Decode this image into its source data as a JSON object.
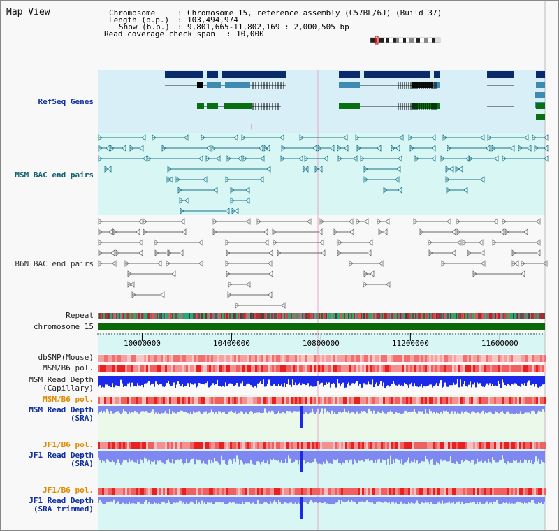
{
  "title": "Map View",
  "header": {
    "line1_key": "Chromosome",
    "line1_val": "Chromosome 15, reference assembly (C57BL/6J) (Build 37)",
    "line2_key": "Length (b.p.)",
    "line2_val": "103,494,974",
    "line3_key": "Show (b.p.)",
    "line3_val": "9,801,665-11,802,169 : 2,000,505 bp",
    "line4_key": "Read coverage check span",
    "line4_val": "10,000"
  },
  "tracks": {
    "refseq": "RefSeq Genes",
    "msm_bac": "MSM BAC end pairs",
    "b6n_bac": "B6N BAC end pairs",
    "repeat": "Repeat",
    "chromosome": "chromosome 15",
    "dbsnp": "dbSNP(Mouse)",
    "msm_pol": "MSM/B6 pol.",
    "msm_depth_cap_1": "MSM Read Depth",
    "msm_depth_cap_2": "(Capillary)",
    "msm_pol2": "MSM/B6 pol.",
    "msm_depth_sra_1": "MSM Read Depth",
    "msm_depth_sra_2": "(SRA)",
    "jf1_pol": "JF1/B6 pol.",
    "jf1_depth_sra_1": "JF1 Read Depth",
    "jf1_depth_sra_2": "(SRA)",
    "jf1_pol2": "JF1/B6 pol.",
    "jf1_depth_trim_1": "JF1 Read Depth",
    "jf1_depth_trim_2": "(SRA trimmed)"
  },
  "axis": {
    "ticks": [
      "10000000",
      "10400000",
      "10800000",
      "11200000",
      "11600000"
    ],
    "tick_values": [
      10000000,
      10400000,
      10800000,
      11200000,
      11600000
    ],
    "range": [
      9801665,
      11802169
    ]
  },
  "colors": {
    "gene_dark": "#0a2a6a",
    "gene_mid": "#3e8ab0",
    "gene_green": "#087010",
    "bac_msm": "#1a7088",
    "bac_b6n": "#666666",
    "chromosome": "#0a6a0a",
    "depth_blue": "#1a2ae8",
    "depth_light": "#7f88f0"
  }
}
